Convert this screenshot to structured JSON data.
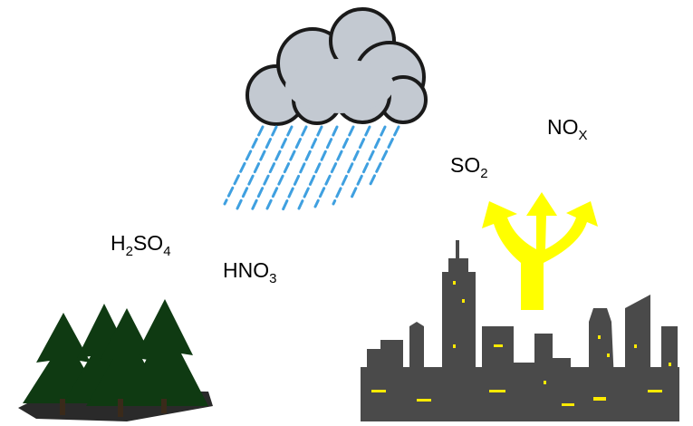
{
  "labels": [
    {
      "segments": [
        {
          "text": "H"
        },
        {
          "text": "2",
          "sub": true
        },
        {
          "text": "SO"
        },
        {
          "text": "4",
          "sub": true
        }
      ]
    },
    {
      "segments": [
        {
          "text": "HNO"
        },
        {
          "text": "3",
          "sub": true
        }
      ]
    },
    {
      "segments": [
        {
          "text": "SO"
        },
        {
          "text": "2",
          "sub": true
        }
      ]
    },
    {
      "segments": [
        {
          "text": "NO"
        },
        {
          "text": "X",
          "sub": true
        }
      ]
    }
  ]
}
